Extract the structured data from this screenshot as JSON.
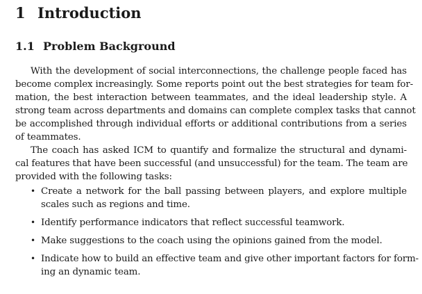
{
  "section": {
    "number": "1",
    "title": "Introduction"
  },
  "subsection": {
    "number": "1.1",
    "title": "Problem Background"
  },
  "paragraph_1": {
    "lines": [
      "With the development of social interconnections, the challenge people faced has",
      "become complex increasingly. Some reports point out the best strategies for team for-",
      "mation, the best interaction between teammates, and the ideal leadership style.  A",
      "strong team across departments and domains can complete complex tasks that cannot",
      "be accomplished through individual efforts or additional contributions from a series",
      "of teammates."
    ]
  },
  "paragraph_2": {
    "lines": [
      "The coach has asked ICM to quantify and formalize the structural and dynami-",
      "cal features that have been successful (and unsuccessful) for the team.  The team are",
      "provided with the following tasks:"
    ]
  },
  "bullet_symbol": "•",
  "tasks": [
    {
      "lines": [
        "Create a network for the ball passing between players, and explore multiple",
        "scales such as regions and time."
      ]
    },
    {
      "lines": [
        "Identify performance indicators that reflect successful teamwork."
      ]
    },
    {
      "lines": [
        "Make suggestions to the coach using the opinions gained from the model."
      ]
    },
    {
      "lines": [
        "Indicate how to build an effective team and give other important factors for form-",
        "ing an dynamic team."
      ]
    }
  ]
}
